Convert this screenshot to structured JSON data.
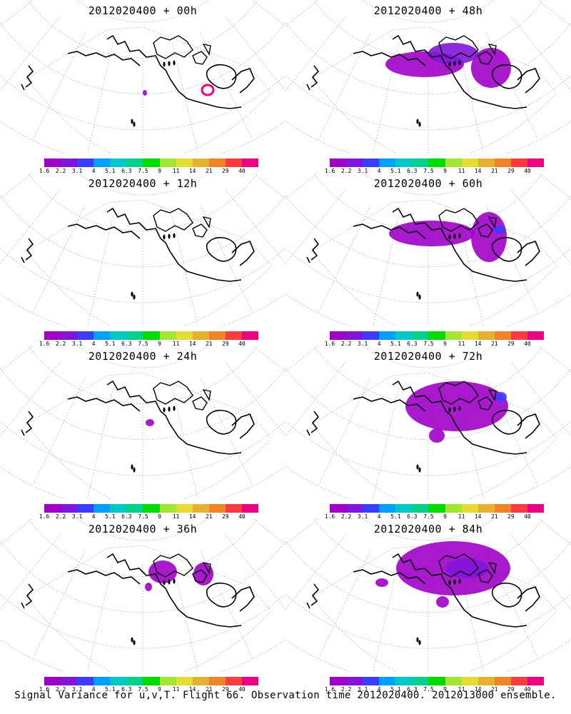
{
  "caption": "Signal Variance for u,v,T. Flight 66. Observation time 2012020400. 2012013000 ensemble.",
  "colorbar": {
    "colors": [
      "#a000c8",
      "#8214dc",
      "#3c3cff",
      "#00a0ff",
      "#00c8c8",
      "#00d28c",
      "#00dc00",
      "#a0e632",
      "#e6dc32",
      "#e6af2d",
      "#f08228",
      "#fa3c3c",
      "#f00082"
    ],
    "ticks": [
      "1.6",
      "2.2",
      "3.1",
      "4",
      "5.1",
      "6.3",
      "7.5",
      "9",
      "11",
      "14",
      "21",
      "29",
      "40"
    ]
  },
  "panels": [
    {
      "title": "2012020400 + 00h",
      "blobs": [
        {
          "cx": 291,
          "cy": 126,
          "rx": 8,
          "ry": 7,
          "color": "#f00082",
          "ring": true
        },
        {
          "cx": 203,
          "cy": 130,
          "rx": 3,
          "ry": 4,
          "color": "#a000c8"
        }
      ]
    },
    {
      "title": "2012020400 + 48h",
      "blobs": [
        {
          "cx": 195,
          "cy": 90,
          "rx": 55,
          "ry": 18,
          "color": "#a000c8"
        },
        {
          "cx": 288,
          "cy": 95,
          "rx": 28,
          "ry": 28,
          "color": "#a000c8"
        },
        {
          "cx": 235,
          "cy": 75,
          "rx": 35,
          "ry": 15,
          "color": "#8214dc"
        }
      ]
    },
    {
      "title": "2012020400 + 12h",
      "blobs": []
    },
    {
      "title": "2012020400 + 60h",
      "blobs": [
        {
          "cx": 205,
          "cy": 85,
          "rx": 60,
          "ry": 18,
          "color": "#a000c8"
        },
        {
          "cx": 285,
          "cy": 90,
          "rx": 25,
          "ry": 35,
          "color": "#a000c8"
        },
        {
          "cx": 300,
          "cy": 80,
          "rx": 8,
          "ry": 6,
          "color": "#3c3cff"
        }
      ]
    },
    {
      "title": "2012020400 + 24h",
      "blobs": [
        {
          "cx": 210,
          "cy": 108,
          "rx": 6,
          "ry": 5,
          "color": "#a000c8"
        }
      ]
    },
    {
      "title": "2012020400 + 72h",
      "blobs": [
        {
          "cx": 240,
          "cy": 85,
          "rx": 72,
          "ry": 35,
          "color": "#a000c8"
        },
        {
          "cx": 612,
          "cy": 0,
          "rx": 0,
          "ry": 0,
          "color": "#a000c8"
        },
        {
          "cx": 212,
          "cy": 126,
          "rx": 11,
          "ry": 10,
          "color": "#a000c8"
        },
        {
          "cx": 302,
          "cy": 72,
          "rx": 8,
          "ry": 7,
          "color": "#3c3cff"
        }
      ]
    },
    {
      "title": "2012020400 + 36h",
      "blobs": [
        {
          "cx": 228,
          "cy": 75,
          "rx": 20,
          "ry": 16,
          "color": "#a000c8"
        },
        {
          "cx": 285,
          "cy": 78,
          "rx": 14,
          "ry": 16,
          "color": "#a000c8"
        },
        {
          "cx": 208,
          "cy": 96,
          "rx": 5,
          "ry": 6,
          "color": "#a000c8"
        }
      ]
    },
    {
      "title": "2012020400 + 84h",
      "blobs": [
        {
          "cx": 235,
          "cy": 70,
          "rx": 80,
          "ry": 38,
          "color": "#a000c8"
        },
        {
          "cx": 135,
          "cy": 90,
          "rx": 9,
          "ry": 6,
          "color": "#a000c8"
        },
        {
          "cx": 220,
          "cy": 117,
          "rx": 9,
          "ry": 8,
          "color": "#a000c8"
        },
        {
          "cx": 255,
          "cy": 70,
          "rx": 30,
          "ry": 14,
          "color": "#8214dc"
        }
      ]
    }
  ]
}
